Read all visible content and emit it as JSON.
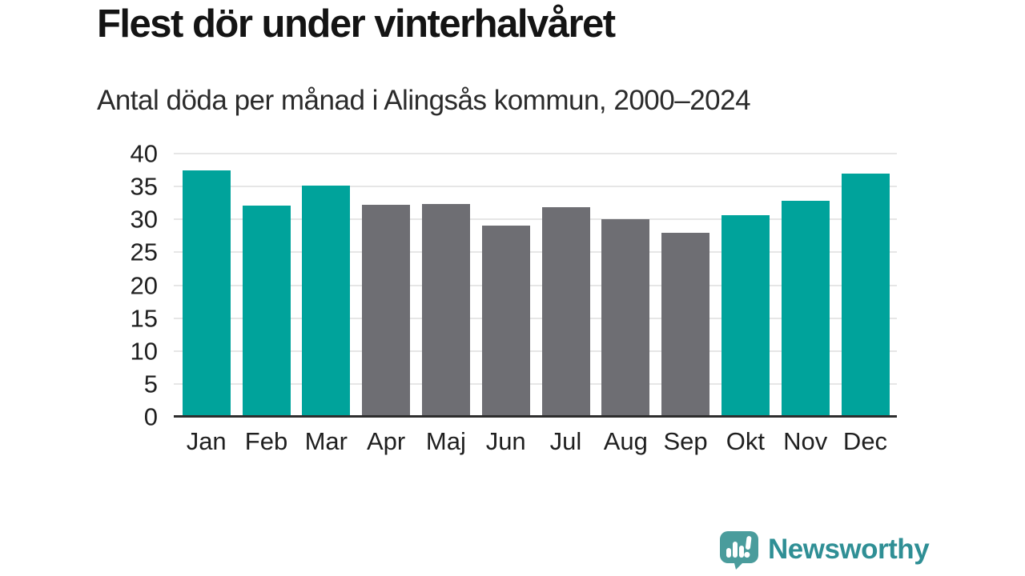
{
  "title": "Flest dör under vinterhalvåret",
  "subtitle": "Antal döda per månad i Alingsås kommun, 2000–2024",
  "chart_data": {
    "type": "bar",
    "title": "Flest dör under vinterhalvåret",
    "subtitle": "Antal döda per månad i Alingsås kommun, 2000–2024",
    "categories": [
      "Jan",
      "Feb",
      "Mar",
      "Apr",
      "Maj",
      "Jun",
      "Jul",
      "Aug",
      "Sep",
      "Okt",
      "Nov",
      "Dec"
    ],
    "values": [
      37.4,
      32.1,
      35.1,
      32.2,
      32.3,
      29.0,
      31.9,
      30.0,
      28.0,
      30.7,
      32.8,
      37.0
    ],
    "highlighted_months": [
      "Jan",
      "Feb",
      "Mar",
      "Okt",
      "Nov",
      "Dec"
    ],
    "colors": {
      "highlight": "#00a39b",
      "default": "#6e6e73"
    },
    "xlabel": "",
    "ylabel": "",
    "ylim": [
      0,
      40
    ],
    "yticks": [
      0,
      5,
      10,
      15,
      20,
      25,
      30,
      35,
      40
    ],
    "grid": true,
    "gridline_color": "#e6e6e6",
    "axis_line_color": "#2d2d2d",
    "legend_position": "none"
  },
  "branding": {
    "logo_text": "Newsworthy",
    "logo_icon": "speech-bubble-bar-chart-icon",
    "logo_color": "#2f8f95",
    "icon_color": "#4a9c9c"
  }
}
